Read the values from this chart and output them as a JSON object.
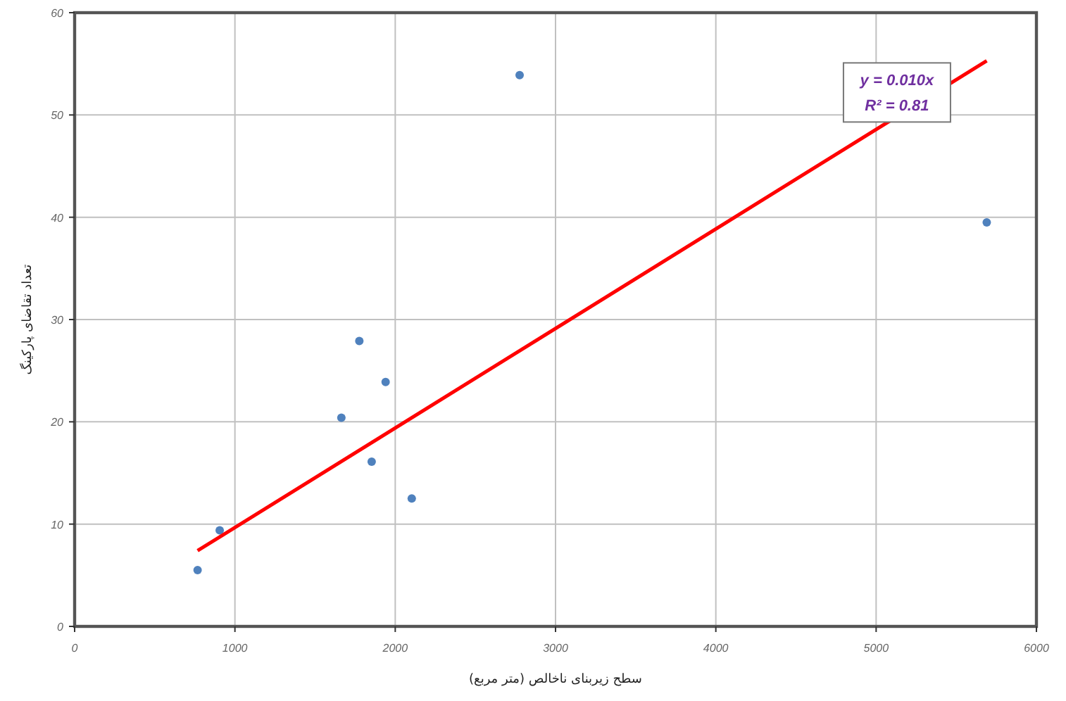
{
  "chart_data": {
    "type": "scatter",
    "xlabel": "سطح زیربنای ناخالص (متر مربع)",
    "ylabel": "تعداد تقاضای پارکینگ",
    "xlim": [
      0,
      6000
    ],
    "ylim": [
      0,
      60
    ],
    "xticks": [
      0,
      1000,
      2000,
      3000,
      4000,
      5000,
      6000
    ],
    "yticks": [
      0,
      10,
      20,
      30,
      40,
      50,
      60
    ],
    "grid": true,
    "annotations": [
      "y = 0.010x",
      "R² = 0.81"
    ],
    "series": [
      {
        "color": "#4f81bd",
        "marker": "circle",
        "x": [
          767,
          905,
          1664,
          1776,
          1940,
          1853,
          2103,
          2776,
          5690
        ],
        "values": [
          5.5,
          9.4,
          20.4,
          27.9,
          23.9,
          16.1,
          12.5,
          53.9,
          39.5
        ]
      },
      {
        "type": "line",
        "color": "#ff0000",
        "marker": "none",
        "line_style": "solid",
        "x": [
          767,
          5690
        ],
        "values": [
          7.4,
          55.3
        ]
      }
    ]
  }
}
